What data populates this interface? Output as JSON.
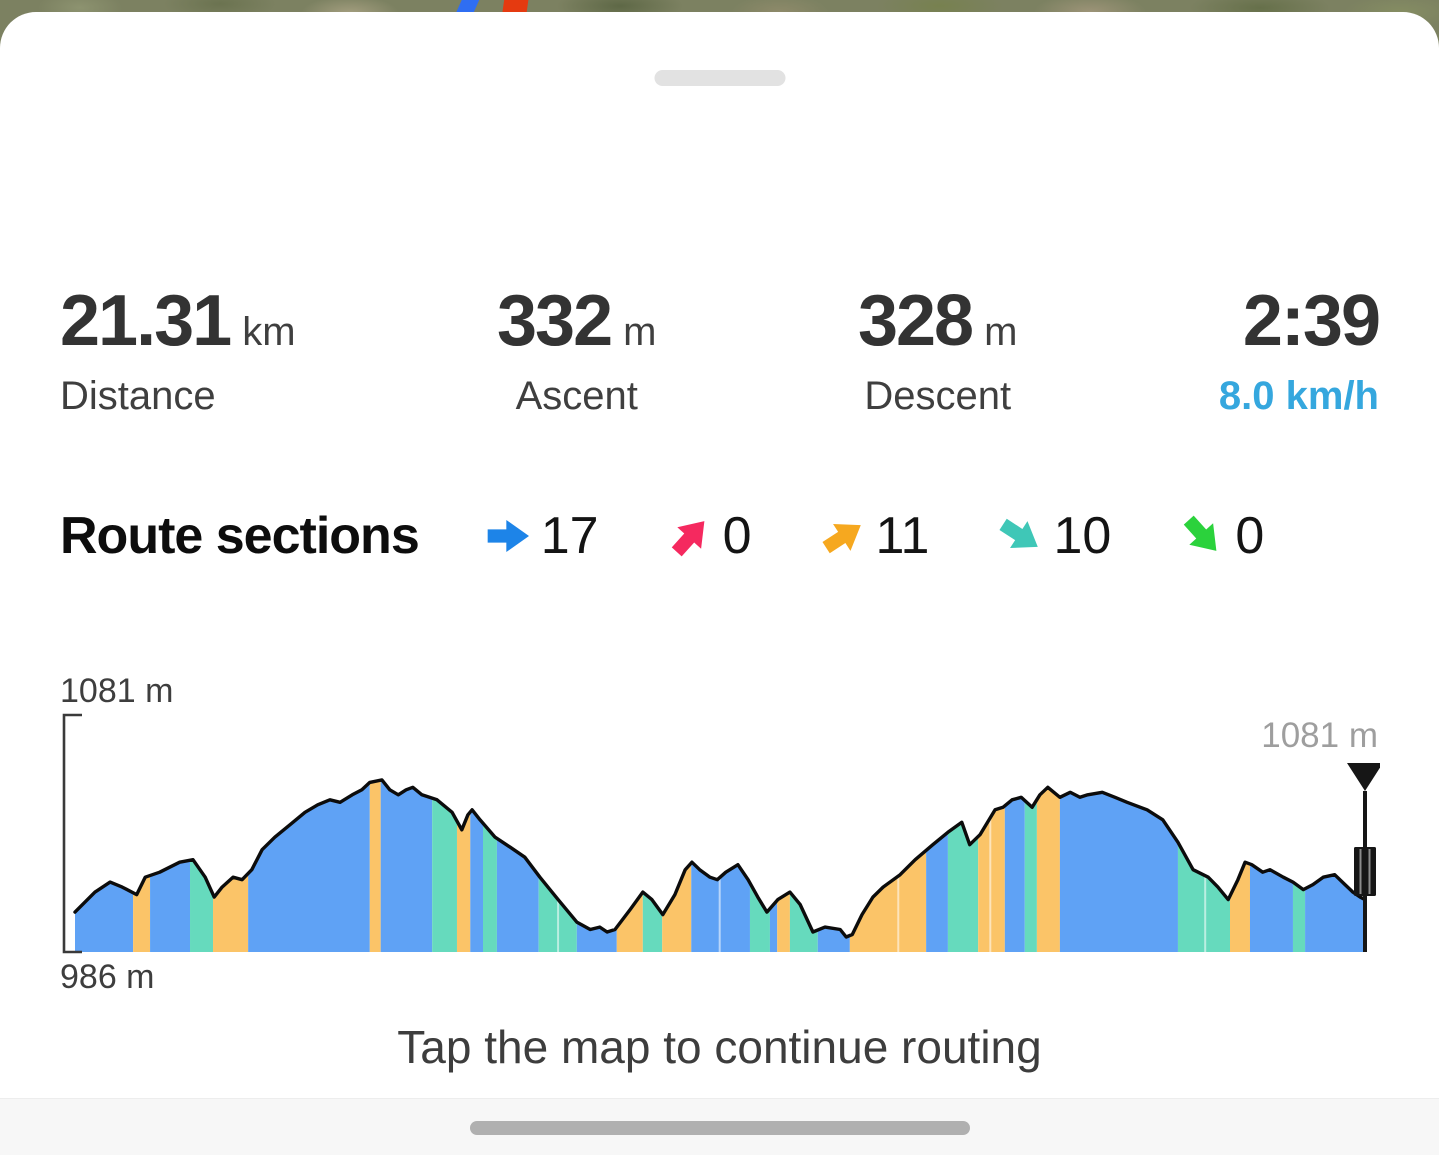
{
  "map_preview": {
    "route_line_blue": "#2f6ef2",
    "route_line_red": "#e53a10"
  },
  "stats": {
    "speed_color": "#35a7de",
    "items": [
      {
        "value": "21.31",
        "unit": "km",
        "label": "Distance"
      },
      {
        "value": "332",
        "unit": "m",
        "label": "Ascent"
      },
      {
        "value": "328",
        "unit": "m",
        "label": "Descent"
      },
      {
        "value": "2:39",
        "unit": "",
        "label": "8.0 km/h"
      }
    ]
  },
  "route_sections": {
    "title": "Route sections",
    "items": [
      {
        "name": "flat",
        "count": "17",
        "color": "#1d84e8",
        "angle": 0
      },
      {
        "name": "steep-ascent",
        "count": "0",
        "color": "#f5295f",
        "angle": -48
      },
      {
        "name": "moderate-ascent",
        "count": "11",
        "color": "#f6a81f",
        "angle": -33
      },
      {
        "name": "moderate-descent",
        "count": "10",
        "color": "#3fc7b7",
        "angle": 33
      },
      {
        "name": "steep-descent",
        "count": "0",
        "color": "#2bd23c",
        "angle": 48
      }
    ]
  },
  "chart_data": {
    "type": "area",
    "title": "Elevation profile",
    "total_distance_km": 21.31,
    "ylim": [
      986,
      1081
    ],
    "y_max_label": "1081 m",
    "y_min_label": "986 m",
    "end_marker_label": "1081 m",
    "grid": false,
    "segment_colors": {
      "flat": "#5fa2f5",
      "ascent": "#fbc468",
      "descent": "#66dabd"
    },
    "profile": [
      [
        0,
        1002
      ],
      [
        0.33,
        1010
      ],
      [
        0.58,
        1014
      ],
      [
        0.78,
        1012
      ],
      [
        1.02,
        1009
      ],
      [
        1.16,
        1016
      ],
      [
        1.4,
        1018
      ],
      [
        1.73,
        1022
      ],
      [
        1.95,
        1023
      ],
      [
        2.15,
        1016
      ],
      [
        2.3,
        1008
      ],
      [
        2.43,
        1012
      ],
      [
        2.61,
        1016
      ],
      [
        2.76,
        1015
      ],
      [
        2.92,
        1019
      ],
      [
        3.09,
        1027
      ],
      [
        3.3,
        1032
      ],
      [
        3.55,
        1037
      ],
      [
        3.8,
        1042
      ],
      [
        4.01,
        1045
      ],
      [
        4.21,
        1047
      ],
      [
        4.38,
        1046
      ],
      [
        4.58,
        1049
      ],
      [
        4.74,
        1051
      ],
      [
        4.87,
        1054
      ],
      [
        5.07,
        1055
      ],
      [
        5.2,
        1051
      ],
      [
        5.34,
        1049
      ],
      [
        5.47,
        1051
      ],
      [
        5.58,
        1052
      ],
      [
        5.73,
        1049
      ],
      [
        5.98,
        1047
      ],
      [
        6.23,
        1042
      ],
      [
        6.39,
        1035
      ],
      [
        6.49,
        1041
      ],
      [
        6.56,
        1043
      ],
      [
        6.69,
        1039
      ],
      [
        6.94,
        1032
      ],
      [
        7.19,
        1028
      ],
      [
        7.43,
        1024
      ],
      [
        7.68,
        1016
      ],
      [
        7.98,
        1007
      ],
      [
        8.29,
        998
      ],
      [
        8.51,
        995
      ],
      [
        8.67,
        996
      ],
      [
        8.79,
        994
      ],
      [
        8.92,
        995
      ],
      [
        9.17,
        1003
      ],
      [
        9.38,
        1010
      ],
      [
        9.53,
        1007
      ],
      [
        9.71,
        1001
      ],
      [
        9.91,
        1009
      ],
      [
        10.08,
        1019
      ],
      [
        10.19,
        1022
      ],
      [
        10.32,
        1019
      ],
      [
        10.49,
        1016
      ],
      [
        10.61,
        1015
      ],
      [
        10.75,
        1018
      ],
      [
        10.95,
        1021
      ],
      [
        11.12,
        1015
      ],
      [
        11.28,
        1008
      ],
      [
        11.43,
        1002
      ],
      [
        11.61,
        1007
      ],
      [
        11.81,
        1010
      ],
      [
        11.98,
        1005
      ],
      [
        12.19,
        994
      ],
      [
        12.39,
        996
      ],
      [
        12.64,
        995
      ],
      [
        12.74,
        992
      ],
      [
        12.84,
        993
      ],
      [
        13,
        1001
      ],
      [
        13.18,
        1008
      ],
      [
        13.35,
        1012
      ],
      [
        13.63,
        1017
      ],
      [
        13.88,
        1023
      ],
      [
        14.17,
        1029
      ],
      [
        14.42,
        1034
      ],
      [
        14.65,
        1038
      ],
      [
        14.78,
        1029
      ],
      [
        14.95,
        1033
      ],
      [
        15.2,
        1043
      ],
      [
        15.33,
        1044
      ],
      [
        15.48,
        1047
      ],
      [
        15.63,
        1048
      ],
      [
        15.81,
        1044
      ],
      [
        15.94,
        1049
      ],
      [
        16.07,
        1052
      ],
      [
        16.27,
        1048
      ],
      [
        16.44,
        1050
      ],
      [
        16.6,
        1048
      ],
      [
        16.73,
        1049
      ],
      [
        16.97,
        1050
      ],
      [
        17.18,
        1048
      ],
      [
        17.38,
        1046
      ],
      [
        17.71,
        1043
      ],
      [
        17.97,
        1039
      ],
      [
        18.22,
        1030
      ],
      [
        18.47,
        1019
      ],
      [
        18.72,
        1016
      ],
      [
        18.88,
        1012
      ],
      [
        19.05,
        1007
      ],
      [
        19.21,
        1015
      ],
      [
        19.33,
        1022
      ],
      [
        19.44,
        1021
      ],
      [
        19.62,
        1018
      ],
      [
        19.74,
        1019
      ],
      [
        19.96,
        1016
      ],
      [
        20.12,
        1014
      ],
      [
        20.29,
        1011
      ],
      [
        20.45,
        1013
      ],
      [
        20.62,
        1016
      ],
      [
        20.81,
        1017
      ],
      [
        20.98,
        1013
      ],
      [
        21.11,
        1010
      ],
      [
        21.23,
        1008
      ],
      [
        21.31,
        1007
      ]
    ],
    "bands": [
      [
        0,
        0.96,
        "flat"
      ],
      [
        0.96,
        1.24,
        "ascent"
      ],
      [
        1.24,
        1.9,
        "flat"
      ],
      [
        1.9,
        2.28,
        "descent"
      ],
      [
        2.28,
        2.86,
        "ascent"
      ],
      [
        2.86,
        4.87,
        "flat"
      ],
      [
        4.87,
        5.05,
        "ascent"
      ],
      [
        5.05,
        5.9,
        "flat"
      ],
      [
        5.9,
        6.31,
        "descent"
      ],
      [
        6.31,
        6.53,
        "ascent"
      ],
      [
        6.53,
        6.74,
        "flat"
      ],
      [
        6.74,
        6.97,
        "descent"
      ],
      [
        6.97,
        7.66,
        "flat"
      ],
      [
        7.66,
        8.29,
        "descent"
      ],
      [
        8.29,
        8.95,
        "flat"
      ],
      [
        8.95,
        9.38,
        "ascent"
      ],
      [
        9.38,
        9.7,
        "descent"
      ],
      [
        9.7,
        10.18,
        "ascent"
      ],
      [
        10.18,
        11.15,
        "flat"
      ],
      [
        11.15,
        11.48,
        "descent"
      ],
      [
        11.48,
        11.6,
        "flat"
      ],
      [
        11.6,
        11.81,
        "ascent"
      ],
      [
        11.81,
        12.27,
        "descent"
      ],
      [
        12.27,
        12.8,
        "flat"
      ],
      [
        12.8,
        14.06,
        "ascent"
      ],
      [
        14.06,
        14.42,
        "flat"
      ],
      [
        14.42,
        14.92,
        "descent"
      ],
      [
        14.92,
        15.36,
        "ascent"
      ],
      [
        15.36,
        15.69,
        "flat"
      ],
      [
        15.69,
        15.89,
        "descent"
      ],
      [
        15.89,
        16.27,
        "ascent"
      ],
      [
        16.27,
        18.22,
        "flat"
      ],
      [
        18.22,
        19.08,
        "descent"
      ],
      [
        19.08,
        19.41,
        "ascent"
      ],
      [
        19.41,
        20.12,
        "flat"
      ],
      [
        20.12,
        20.32,
        "descent"
      ],
      [
        20.32,
        21.31,
        "flat"
      ]
    ],
    "separators_km": [
      7.98,
      10.65,
      13.6,
      15.12,
      18.67
    ]
  },
  "hint": "Tap the map to continue routing"
}
